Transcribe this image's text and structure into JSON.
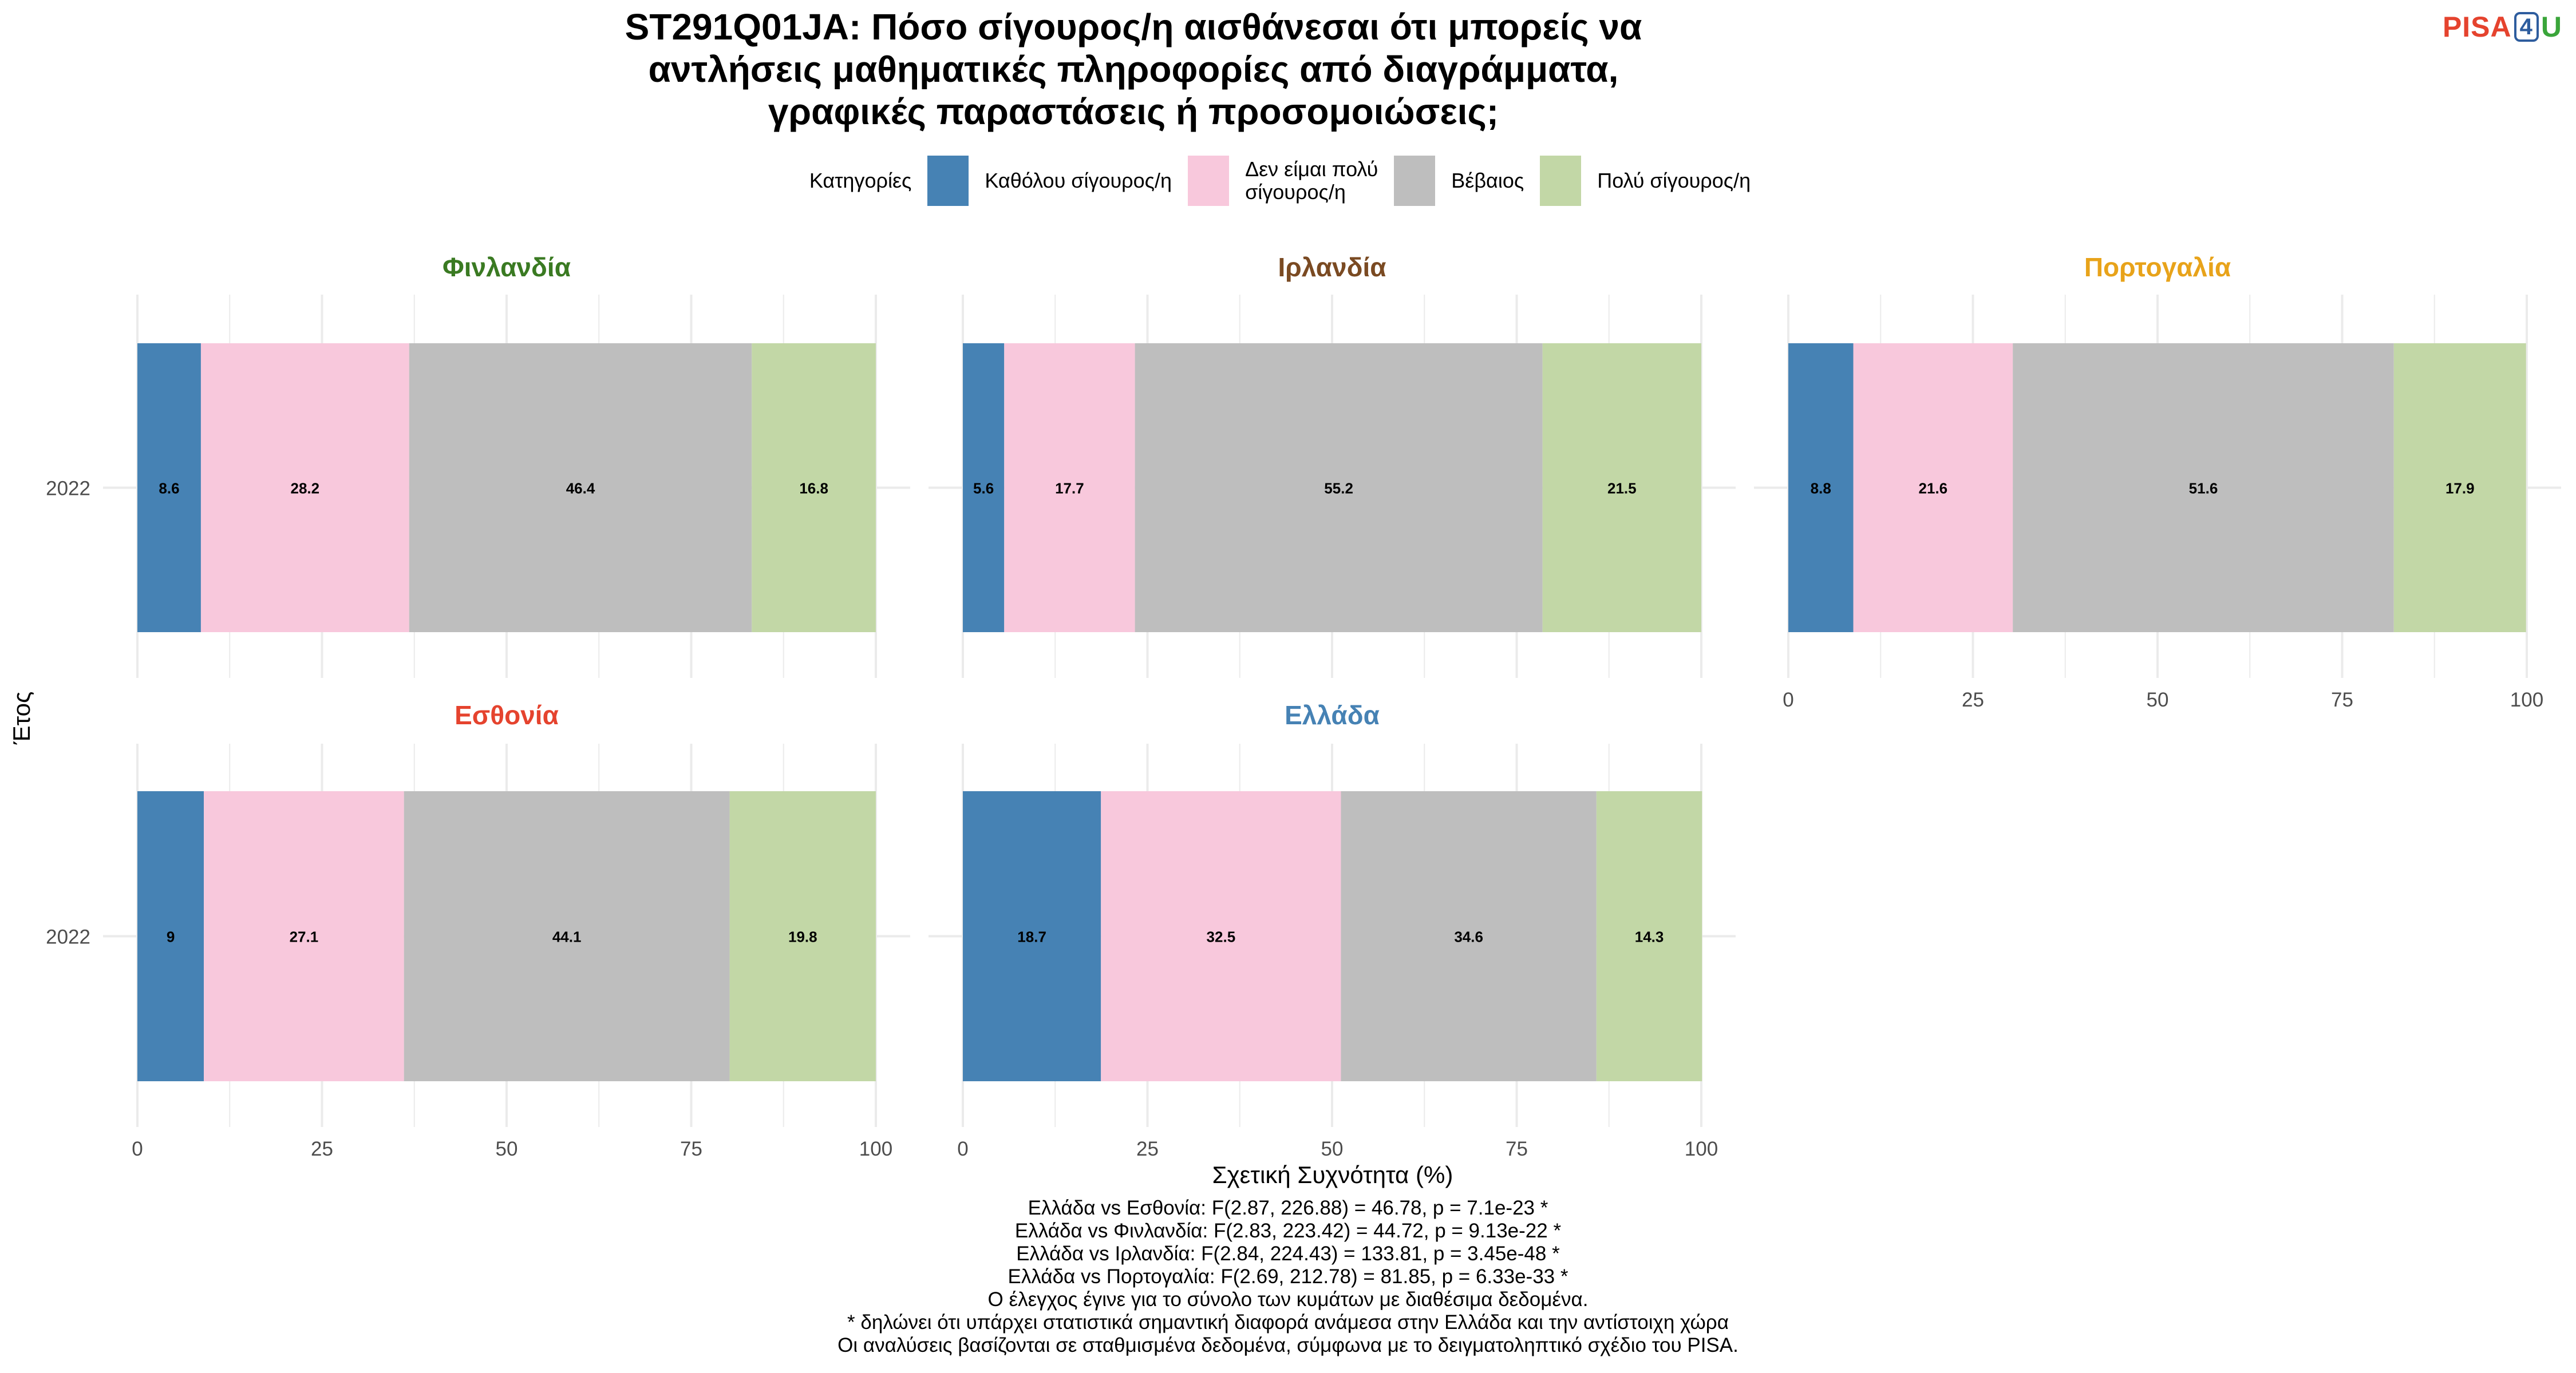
{
  "title": "ST291Q01JA: Πόσο σίγουρος/η αισθάνεσαι ότι μπορείς να αντλήσεις μαθηματικές πληροφορίες από διαγράμματα, γραφικές παραστάσεις ή προσομοιώσεις;",
  "logo": {
    "pisa": "PISA",
    "four": "4",
    "u": "U"
  },
  "legend": {
    "title": "Κατηγορίες",
    "items": [
      {
        "label": "Καθόλου σίγουρος/η",
        "color": "#4682b4"
      },
      {
        "label": "Δεν είμαι πολύ\nσίγουρος/η",
        "color": "#f8c8dc"
      },
      {
        "label": "Βέβαιος",
        "color": "#bebebe"
      },
      {
        "label": "Πολύ σίγουρος/η",
        "color": "#c2d7a6"
      }
    ]
  },
  "chart_data": {
    "type": "bar",
    "orientation": "horizontal",
    "stacked": true,
    "xlabel": "Σχετική Συχνότητα (%)",
    "ylabel": "Έτος",
    "xlim": [
      0,
      100
    ],
    "xticks": [
      0,
      25,
      50,
      75,
      100
    ],
    "grid": true,
    "legend_position": "top",
    "facets": [
      {
        "name": "Φινλανδία",
        "color": "#3a7a22",
        "category": "2022",
        "values": [
          8.6,
          28.2,
          46.4,
          16.8
        ]
      },
      {
        "name": "Ιρλανδία",
        "color": "#7a4a22",
        "category": "2022",
        "values": [
          5.6,
          17.7,
          55.2,
          21.5
        ]
      },
      {
        "name": "Πορτογαλία",
        "color": "#e8a31a",
        "category": "2022",
        "values": [
          8.8,
          21.6,
          51.6,
          17.9
        ]
      },
      {
        "name": "Εσθονία",
        "color": "#e5432e",
        "category": "2022",
        "values": [
          9,
          27.1,
          44.1,
          19.8
        ]
      },
      {
        "name": "Ελλάδα",
        "color": "#4682b4",
        "category": "2022",
        "values": [
          18.7,
          32.5,
          34.6,
          14.3
        ]
      }
    ]
  },
  "footer": [
    "Ελλάδα vs Εσθονία: F(2.87, 226.88) = 46.78, p = 7.1e-23 *",
    "Ελλάδα vs Φινλανδία: F(2.83, 223.42) = 44.72, p = 9.13e-22 *",
    "Ελλάδα vs Ιρλανδία: F(2.84, 224.43) = 133.81, p = 3.45e-48 *",
    "Ελλάδα vs Πορτογαλία: F(2.69, 212.78) = 81.85, p = 6.33e-33 *",
    "Ο έλεγχος έγινε για το σύνολο των κυμάτων με διαθέσιμα δεδομένα.",
    "* δηλώνει ότι υπάρχει στατιστικά σημαντική διαφορά ανάμεσα στην Ελλάδα και την αντίστοιχη χώρα",
    "Οι αναλύσεις βασίζονται σε σταθμισμένα δεδομένα, σύμφωνα με το δειγματοληπτικό σχέδιο του PISA."
  ]
}
